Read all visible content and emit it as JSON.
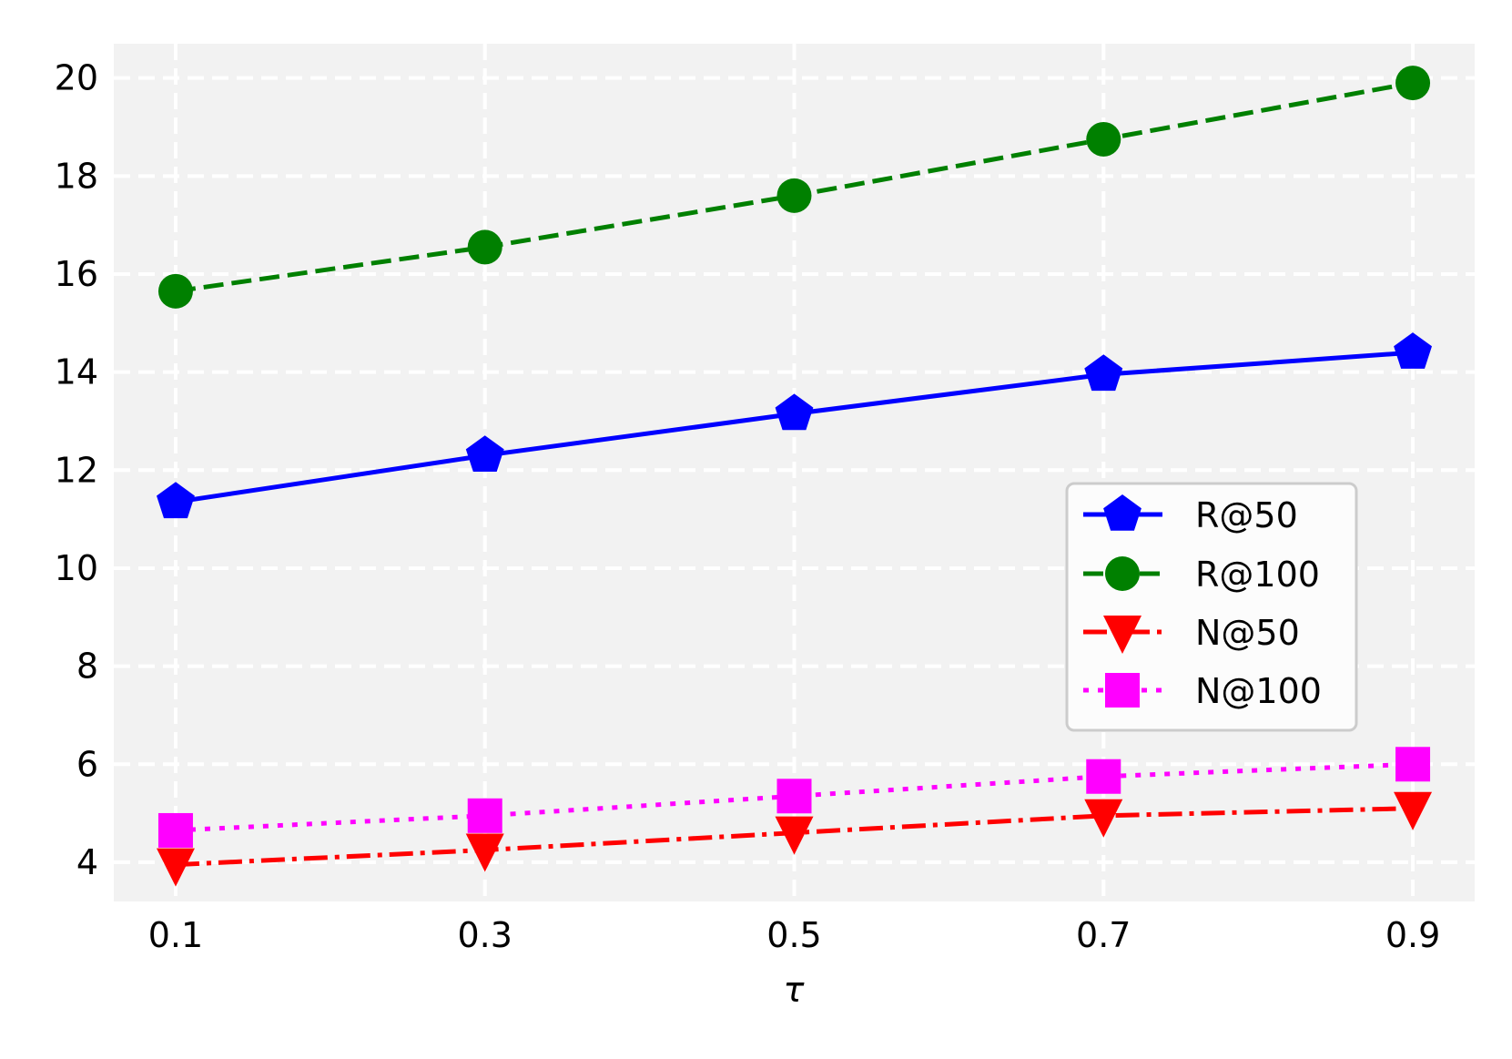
{
  "chart_data": {
    "type": "line",
    "title": "",
    "xlabel": "τ",
    "ylabel": "",
    "x": [
      0.1,
      0.3,
      0.5,
      0.7,
      0.9
    ],
    "xticks": [
      "0.1",
      "0.3",
      "0.5",
      "0.7",
      "0.9"
    ],
    "yticks": [
      4,
      6,
      8,
      10,
      12,
      14,
      16,
      18,
      20
    ],
    "ylim": [
      3.2,
      20.7
    ],
    "xlim": [
      0.06,
      0.94
    ],
    "grid": true,
    "legend_position": "center-right",
    "series": [
      {
        "name": "R@50",
        "values": [
          11.35,
          12.3,
          13.15,
          13.95,
          14.4
        ],
        "color": "#0000ff",
        "marker": "pentagon",
        "linestyle": "solid"
      },
      {
        "name": "R@100",
        "values": [
          15.65,
          16.55,
          17.6,
          18.75,
          19.9
        ],
        "color": "#008000",
        "marker": "circle",
        "linestyle": "dashed"
      },
      {
        "name": "N@50",
        "values": [
          3.95,
          4.25,
          4.6,
          4.95,
          5.1
        ],
        "color": "#ff0000",
        "marker": "triangle-down",
        "linestyle": "dashdot"
      },
      {
        "name": "N@100",
        "values": [
          4.65,
          4.95,
          5.35,
          5.75,
          6.0
        ],
        "color": "#ff00ff",
        "marker": "square",
        "linestyle": "dotted"
      }
    ]
  }
}
